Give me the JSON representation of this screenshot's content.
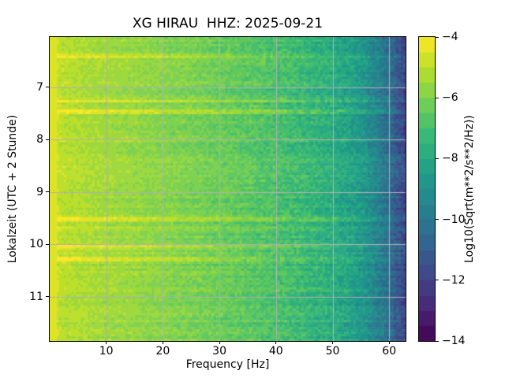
{
  "chart_data": {
    "type": "heatmap",
    "subtype": "spectrogram",
    "title": "XG HIRAU  HHZ: 2025-09-21",
    "xlabel": "Frequency [Hz]",
    "ylabel": "Lokalzeit (UTC + 2 Stunde)",
    "colorbar_label": "Log10(Sqrt(m**2/s**2/Hz))",
    "x_range": [
      0,
      62.9
    ],
    "x_ticks": [
      10,
      20,
      30,
      40,
      50,
      60
    ],
    "y_range": [
      6.04,
      11.85
    ],
    "y_ticks": [
      7,
      8,
      9,
      10,
      11
    ],
    "color_range": [
      -14,
      -4
    ],
    "colorbar_ticks": [
      -4,
      -6,
      -8,
      -10,
      -12,
      -14
    ],
    "colormap": "viridis",
    "grid": true,
    "grid_color": "#b0b0b0",
    "quantize_step": 0.5,
    "baseline_profile": {
      "freqs": [
        0.0,
        0.8,
        2.0,
        4.0,
        8.0,
        12.0,
        16.0,
        20.0,
        25.0,
        30.0,
        35.0,
        40.0,
        45.0,
        50.0,
        53.0,
        56.0,
        58.0,
        60.0,
        61.5,
        62.9
      ],
      "values": [
        -4.4,
        -4.7,
        -5.0,
        -5.15,
        -5.35,
        -5.5,
        -5.65,
        -5.85,
        -6.05,
        -6.3,
        -6.55,
        -6.9,
        -7.3,
        -7.8,
        -8.2,
        -8.9,
        -9.6,
        -10.4,
        -11.2,
        -11.9
      ]
    },
    "noise": {
      "seed": 20250921,
      "cell_amplitude_low": 0.3,
      "cell_amplitude_high": 0.62,
      "row_band_amplitude": 0.38
    },
    "events": [
      {
        "time": 6.4,
        "amplitude": 1.0,
        "width_hours": 0.045
      },
      {
        "time": 7.27,
        "amplitude": 0.95,
        "width_hours": 0.04
      },
      {
        "time": 7.46,
        "amplitude": 1.2,
        "width_hours": 0.05
      },
      {
        "time": 9.52,
        "amplitude": 1.15,
        "width_hours": 0.045
      },
      {
        "time": 9.67,
        "amplitude": 0.45,
        "width_hours": 0.03
      },
      {
        "time": 10.05,
        "amplitude": 1.15,
        "width_hours": 0.045
      },
      {
        "time": 10.29,
        "amplitude": 1.3,
        "width_hours": 0.06
      }
    ],
    "colormap_stops": [
      [
        0.0,
        "#440154"
      ],
      [
        0.111,
        "#482878"
      ],
      [
        0.222,
        "#3e4989"
      ],
      [
        0.333,
        "#31688e"
      ],
      [
        0.444,
        "#26828e"
      ],
      [
        0.556,
        "#1f9e89"
      ],
      [
        0.667,
        "#35b779"
      ],
      [
        0.778,
        "#6ece58"
      ],
      [
        0.889,
        "#b5de2b"
      ],
      [
        1.0,
        "#fde725"
      ]
    ]
  }
}
